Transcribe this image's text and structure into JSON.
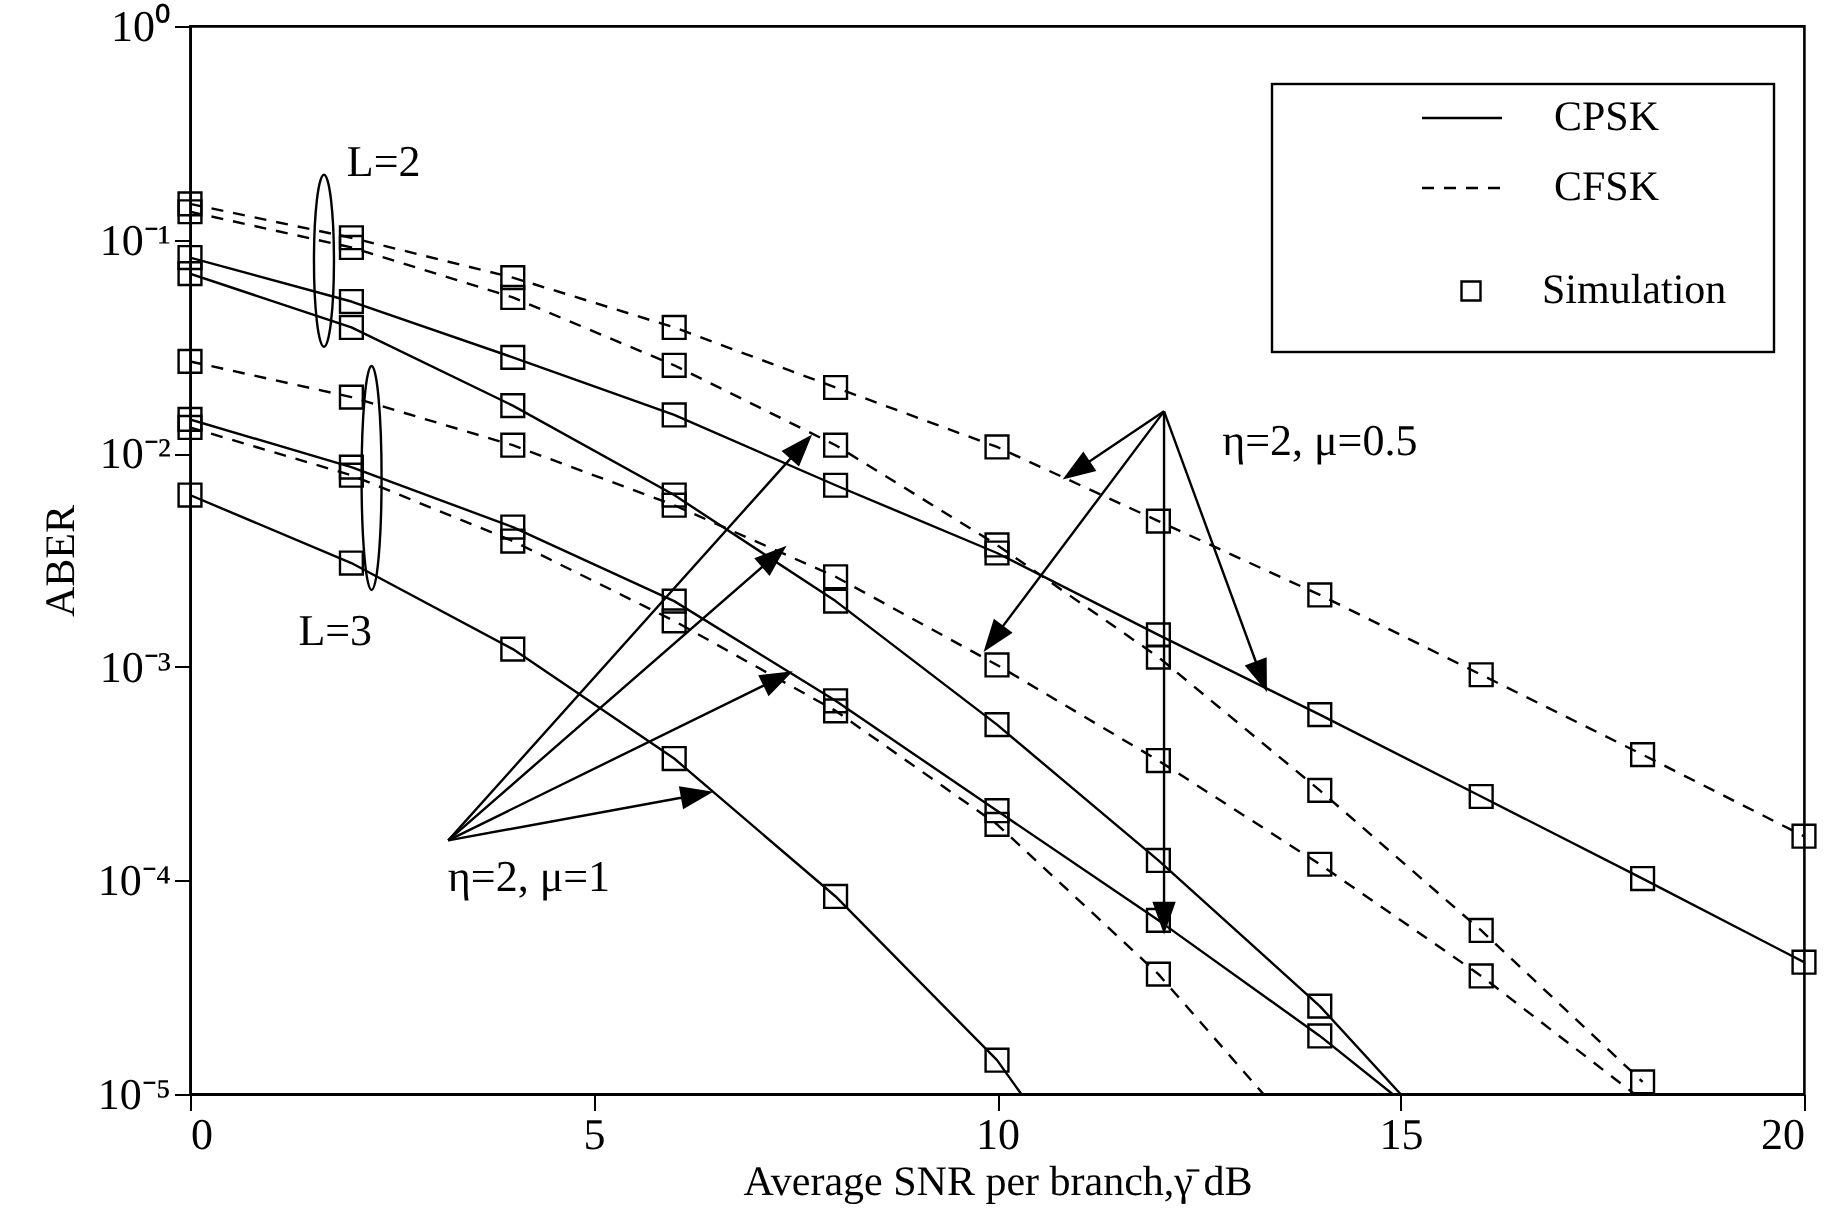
{
  "chart_data": {
    "type": "line",
    "xlabel": "Average SNR per branch,γ̄ dB",
    "ylabel": "ABER",
    "xlim": [
      0,
      20
    ],
    "xticks": [
      0,
      5,
      10,
      15,
      20
    ],
    "ylim": [
      1e-05,
      1
    ],
    "yticks": [
      {
        "value": 1e-05,
        "label": "10⁻⁵"
      },
      {
        "value": 0.0001,
        "label": "10⁻⁴"
      },
      {
        "value": 0.001,
        "label": "10⁻³"
      },
      {
        "value": 0.01,
        "label": "10⁻²"
      },
      {
        "value": 0.1,
        "label": "10⁻¹"
      },
      {
        "value": 1,
        "label": "10⁰"
      }
    ],
    "log": true,
    "legend": "top right",
    "annotations": [
      "L=2",
      "L=3",
      {
        "text": "η=2, μ=1",
        "x": 7.36,
        "y": 0.0036
      },
      "η=2, μ=0.5"
    ],
    "series": [
      {
        "name": "CPSK",
        "type": "line",
        "line_style": "solid",
        "color": "#000000",
        "x": [
          0,
          2,
          4,
          6,
          8,
          10,
          12,
          14,
          16,
          18,
          20
        ],
        "values": [
          0.0824,
          0.0513,
          0.0281,
          0.0151,
          0.00708,
          0.00341,
          0.00141,
          0.000597,
          0.000247,
          0.000102,
          4.14e-05
        ]
      },
      {
        "name": "CFSK",
        "type": "line",
        "line_style": "dashed",
        "color": "#000000",
        "x": [
          0,
          2,
          4,
          6,
          8,
          10,
          12,
          14,
          16,
          18,
          20
        ],
        "values": [
          0.147,
          0.102,
          0.0664,
          0.0388,
          0.0203,
          0.0107,
          0.00481,
          0.00217,
          0.000918,
          0.000388,
          0.000161
        ]
      },
      {
        "type": "line",
        "line_style": "dashed",
        "color": "#000000",
        "x": [
          0,
          2,
          4,
          6,
          8,
          10,
          12,
          14,
          16,
          18
        ],
        "values": [
          0.135,
          0.0919,
          0.0536,
          0.0258,
          0.0109,
          0.00372,
          0.00111,
          0.000264,
          5.83e-05,
          1.14e-05
        ]
      },
      {
        "type": "line",
        "line_style": "dashed",
        "color": "#000000",
        "x": [
          0,
          2,
          4,
          6,
          8,
          10,
          12,
          14,
          16,
          17.9
        ],
        "values": [
          0.0269,
          0.0183,
          0.0109,
          0.00571,
          0.00264,
          0.00102,
          0.000364,
          0.000119,
          3.57e-05,
          1e-05
        ]
      },
      {
        "type": "line",
        "line_style": "solid",
        "color": "#000000",
        "x": [
          0,
          2,
          4,
          6,
          8,
          10,
          12,
          14,
          15
        ],
        "values": [
          0.0693,
          0.0388,
          0.0167,
          0.00637,
          0.00203,
          0.000536,
          0.000124,
          2.58e-05,
          1e-05
        ]
      },
      {
        "type": "line",
        "line_style": "solid",
        "color": "#000000",
        "x": [
          0,
          2,
          4,
          6,
          8,
          10,
          12,
          14,
          14.9
        ],
        "values": [
          0.0144,
          0.00861,
          0.00451,
          0.00203,
          0.000693,
          0.000212,
          6.5e-05,
          1.87e-05,
          1e-05
        ]
      },
      {
        "type": "line",
        "line_style": "dashed",
        "color": "#000000",
        "x": [
          0,
          2,
          4,
          6,
          8,
          10,
          12,
          13.3
        ],
        "values": [
          0.0132,
          0.00789,
          0.00388,
          0.00164,
          0.000622,
          0.000183,
          3.64e-05,
          1e-05
        ]
      },
      {
        "type": "line",
        "line_style": "solid",
        "color": "#000000",
        "x": [
          0,
          2,
          4,
          6,
          8,
          10,
          10.3
        ],
        "values": [
          0.00637,
          0.00306,
          0.00121,
          0.000372,
          8.41e-05,
          1.44e-05,
          1e-05
        ]
      },
      {
        "name": "Simulation",
        "type": "scatter",
        "marker": "square",
        "color": "#000000",
        "x": [
          0,
          2,
          4,
          6,
          8,
          10,
          12,
          14,
          16,
          18,
          20,
          0,
          2,
          4,
          6,
          8,
          10,
          12,
          14,
          16,
          18,
          20,
          0,
          2,
          4,
          6,
          8,
          10,
          12,
          14,
          16,
          18,
          0,
          2,
          4,
          6,
          8,
          10,
          12,
          14,
          16,
          0,
          2,
          4,
          6,
          8,
          10,
          12,
          14,
          0,
          2,
          4,
          6,
          8,
          10,
          12,
          14,
          0,
          2,
          4,
          6,
          8,
          10,
          12,
          0,
          2,
          4,
          6,
          8,
          10
        ],
        "values": [
          0.147,
          0.102,
          0.0664,
          0.0388,
          0.0203,
          0.0107,
          0.00481,
          0.00217,
          0.000918,
          0.000388,
          0.000161,
          0.0824,
          0.0513,
          0.0281,
          0.0151,
          0.00708,
          0.00341,
          0.00141,
          0.000597,
          0.000247,
          0.000102,
          4.14e-05,
          0.135,
          0.0919,
          0.0536,
          0.0258,
          0.0109,
          0.00372,
          0.00111,
          0.000264,
          5.83e-05,
          1.14e-05,
          0.0269,
          0.0183,
          0.0109,
          0.00571,
          0.00264,
          0.00102,
          0.000364,
          0.000119,
          3.57e-05,
          0.0693,
          0.0388,
          0.0167,
          0.00637,
          0.00203,
          0.000536,
          0.000124,
          2.58e-05,
          0.0144,
          0.00861,
          0.00451,
          0.00203,
          0.000693,
          0.000212,
          6.5e-05,
          1.87e-05,
          0.0132,
          0.00789,
          0.00388,
          0.00164,
          0.000622,
          0.000183,
          3.64e-05,
          0.00637,
          0.00306,
          0.00121,
          0.000372,
          8.41e-05,
          1.44e-05
        ]
      }
    ]
  }
}
